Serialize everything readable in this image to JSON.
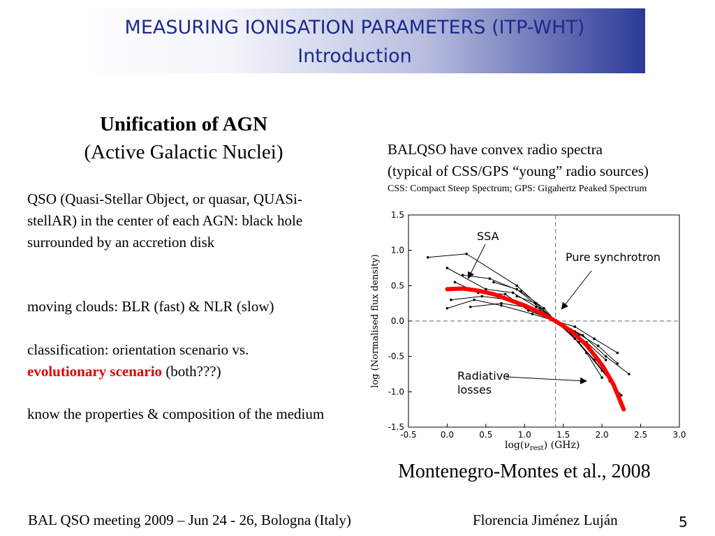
{
  "header": {
    "title": "MEASURING IONISATION PARAMETERS (ITP-WHT)",
    "subtitle": "Introduction"
  },
  "left": {
    "heading": "Unification of AGN",
    "subheading": "(Active Galactic Nuclei)",
    "para1": "QSO (Quasi-Stellar Object, or quasar, QUASi-stellAR) in the center of each AGN: black hole surrounded by an accretion disk",
    "para2": "moving clouds: BLR (fast) & NLR (slow)",
    "para3_lead": "classification: orientation scenario vs.",
    "para3_highlight": "evolutionary scenario",
    "para3_tail": " (both???)",
    "para4": "know the properties & composition of the medium"
  },
  "right": {
    "line1": "BALQSO have convex radio spectra",
    "line2": "(typical of CSS/GPS “young” radio sources)",
    "small": "CSS: Compact Steep Spectrum; GPS: Gigahertz Peaked Spectrum"
  },
  "citation": "Montenegro-Montes et al., 2008",
  "footer": {
    "left": "BAL QSO meeting 2009 – Jun 24 - 26, Bologna (Italy)",
    "right": "Florencia Jiménez Luján",
    "page": "5"
  },
  "chart_data": {
    "type": "line",
    "xlabel": "log(ν",
    "xlabel_sub": "rest",
    "xlabel_unit": ") (GHz)",
    "ylabel": "log (Normalised flux density)",
    "xlim": [
      -0.5,
      3.0
    ],
    "ylim": [
      -1.5,
      1.5
    ],
    "x_ticks": [
      "-0.5",
      "0.0",
      "0.5",
      "1.0",
      "1.5",
      "2.0",
      "2.5",
      "3.0"
    ],
    "y_ticks": [
      "1.5",
      "1.0",
      "0.5",
      "0.0",
      "-0.5",
      "-1.0",
      "-1.5"
    ],
    "annotations": {
      "ssa": "SSA",
      "pure": "Pure synchrotron",
      "radiative_1": "Radiative",
      "radiative_2": "losses"
    },
    "colors": {
      "model": "#ff0000",
      "data": "#000000"
    },
    "reference_lines": {
      "x": 1.4,
      "y": 0.0
    },
    "model_curve": {
      "x": [
        0.0,
        0.2,
        0.4,
        0.6,
        0.8,
        1.0,
        1.2,
        1.4,
        1.6,
        1.8,
        2.0,
        2.15,
        2.28
      ],
      "y": [
        0.45,
        0.46,
        0.43,
        0.38,
        0.3,
        0.22,
        0.12,
        0.0,
        -0.14,
        -0.34,
        -0.62,
        -0.9,
        -1.25
      ]
    },
    "series": [
      {
        "x": [
          -0.25,
          0.25,
          0.9,
          1.15,
          1.4,
          1.65,
          1.9,
          2.15
        ],
        "y": [
          0.9,
          0.95,
          0.5,
          0.25,
          0.0,
          -0.25,
          -0.55,
          -0.9
        ]
      },
      {
        "x": [
          0.0,
          0.5,
          0.85,
          1.15,
          1.4,
          1.7,
          2.0,
          2.25
        ],
        "y": [
          0.75,
          0.45,
          0.4,
          0.2,
          0.0,
          -0.3,
          -0.7,
          -1.05
        ]
      },
      {
        "x": [
          0.1,
          0.4,
          0.75,
          1.05,
          1.4,
          1.6,
          1.85,
          2.1
        ],
        "y": [
          0.55,
          0.4,
          0.38,
          0.15,
          0.0,
          -0.12,
          -0.4,
          -0.85
        ]
      },
      {
        "x": [
          0.0,
          0.35,
          0.7,
          1.1,
          1.4,
          1.75,
          2.05,
          2.35
        ],
        "y": [
          0.18,
          0.3,
          0.22,
          0.1,
          0.0,
          -0.2,
          -0.5,
          -0.75
        ]
      },
      {
        "x": [
          0.05,
          0.45,
          0.8,
          1.2,
          1.4,
          1.65,
          1.95,
          2.2
        ],
        "y": [
          0.3,
          0.35,
          0.3,
          0.12,
          0.0,
          -0.15,
          -0.35,
          -0.6
        ]
      },
      {
        "x": [
          0.2,
          0.55,
          0.95,
          1.25,
          1.4,
          1.55,
          1.8,
          2.05
        ],
        "y": [
          0.65,
          0.6,
          0.42,
          0.18,
          0.0,
          -0.1,
          -0.3,
          -0.55
        ]
      },
      {
        "x": [
          0.6,
          0.9,
          1.2,
          1.4,
          1.6,
          1.8,
          2.0
        ],
        "y": [
          0.55,
          0.45,
          0.18,
          0.0,
          -0.18,
          -0.45,
          -0.8
        ]
      },
      {
        "x": [
          0.3,
          0.7,
          1.0,
          1.3,
          1.4,
          1.65,
          1.9,
          2.2
        ],
        "y": [
          0.2,
          0.25,
          0.2,
          0.05,
          0.0,
          -0.08,
          -0.25,
          -0.45
        ]
      },
      {
        "x": [
          0.9,
          1.15,
          1.4,
          1.7,
          1.95,
          2.2
        ],
        "y": [
          0.35,
          0.25,
          0.0,
          -0.2,
          -0.55,
          -1.05
        ]
      }
    ]
  }
}
